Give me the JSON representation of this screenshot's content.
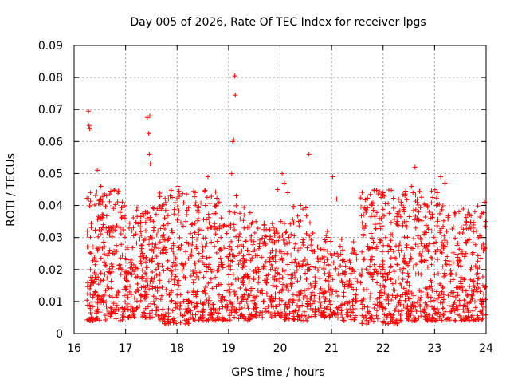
{
  "chart_data": {
    "type": "scatter",
    "title": "Day 005 of 2026, Rate Of TEC Index for receiver lpgs",
    "xlabel": "GPS time / hours",
    "ylabel": "ROTI / TECUs",
    "xlim": [
      16,
      24
    ],
    "ylim": [
      0,
      0.09
    ],
    "x_ticks": [
      "16",
      "17",
      "18",
      "19",
      "20",
      "21",
      "22",
      "23",
      "24"
    ],
    "y_ticks": [
      "0",
      "0.01",
      "0.02",
      "0.03",
      "0.04",
      "0.05",
      "0.06",
      "0.07",
      "0.08",
      "0.09"
    ],
    "grid": true,
    "marker": "+",
    "color": "#ff0000",
    "series": [
      {
        "name": "ROTI",
        "x": [
          16.28,
          16.29,
          16.3,
          16.31,
          16.45,
          16.52,
          16.58,
          16.63,
          17.03,
          17.08,
          17.42,
          17.45,
          17.47,
          17.46,
          17.48,
          17.52,
          17.7,
          17.85,
          18.02,
          18.22,
          18.35,
          18.55,
          18.6,
          18.66,
          18.85,
          19.02,
          19.06,
          19.08,
          19.1,
          19.12,
          19.13,
          19.15,
          19.3,
          19.38,
          19.52,
          19.72,
          19.95,
          20.04,
          20.08,
          20.15,
          20.3,
          20.4,
          20.56,
          20.88,
          20.98,
          21.02,
          21.1,
          21.3,
          21.62,
          21.75,
          22.0,
          22.1,
          22.3,
          22.45,
          22.55,
          22.62,
          22.75,
          22.92,
          23.05,
          23.12,
          23.2,
          23.45,
          23.62,
          23.7,
          23.85,
          23.97,
          23.99
        ],
        "y": [
          0.0695,
          0.065,
          0.064,
          0.014,
          0.051,
          0.046,
          0.012,
          0.043,
          0.022,
          0.013,
          0.0675,
          0.0625,
          0.068,
          0.056,
          0.053,
          0.028,
          0.039,
          0.012,
          0.046,
          0.028,
          0.022,
          0.04,
          0.049,
          0.017,
          0.03,
          0.038,
          0.05,
          0.06,
          0.0605,
          0.0805,
          0.0745,
          0.043,
          0.037,
          0.012,
          0.009,
          0.028,
          0.045,
          0.05,
          0.047,
          0.044,
          0.028,
          0.04,
          0.056,
          0.013,
          0.018,
          0.049,
          0.042,
          0.01,
          0.037,
          0.023,
          0.044,
          0.012,
          0.026,
          0.035,
          0.046,
          0.052,
          0.013,
          0.036,
          0.044,
          0.049,
          0.047,
          0.022,
          0.035,
          0.02,
          0.03,
          0.041,
          0.035
        ]
      }
    ],
    "density_clusters": [
      {
        "from": 16.25,
        "to": 16.95,
        "low": 0.004,
        "high": 0.045,
        "count": 230
      },
      {
        "from": 16.95,
        "to": 17.65,
        "low": 0.005,
        "high": 0.04,
        "count": 220
      },
      {
        "from": 17.65,
        "to": 18.3,
        "low": 0.003,
        "high": 0.045,
        "count": 200
      },
      {
        "from": 18.3,
        "to": 18.95,
        "low": 0.004,
        "high": 0.045,
        "count": 210
      },
      {
        "from": 18.95,
        "to": 19.45,
        "low": 0.004,
        "high": 0.04,
        "count": 150
      },
      {
        "from": 19.45,
        "to": 20.05,
        "low": 0.005,
        "high": 0.035,
        "count": 170
      },
      {
        "from": 20.05,
        "to": 20.6,
        "low": 0.004,
        "high": 0.04,
        "count": 150
      },
      {
        "from": 20.6,
        "to": 21.1,
        "low": 0.005,
        "high": 0.032,
        "count": 120
      },
      {
        "from": 21.1,
        "to": 21.5,
        "low": 0.004,
        "high": 0.03,
        "count": 90
      },
      {
        "from": 21.55,
        "to": 22.3,
        "low": 0.003,
        "high": 0.045,
        "count": 240
      },
      {
        "from": 22.3,
        "to": 23.1,
        "low": 0.004,
        "high": 0.045,
        "count": 260
      },
      {
        "from": 23.1,
        "to": 24.0,
        "low": 0.004,
        "high": 0.04,
        "count": 260
      }
    ]
  }
}
